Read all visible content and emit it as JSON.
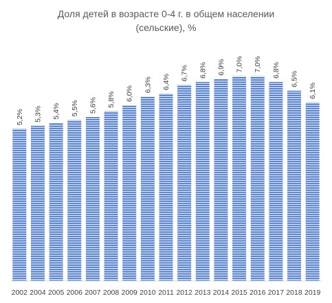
{
  "chart_data": {
    "type": "bar",
    "title": "Доля детей в возрасте 0-4 г. в общем населении (сельские), %",
    "title_lines": [
      "Доля детей в возрасте 0-4 г. в общем населении",
      "(сельские), %"
    ],
    "categories": [
      "2002",
      "2004",
      "2005",
      "2006",
      "2007",
      "2008",
      "2009",
      "2010",
      "2011",
      "2012",
      "2013",
      "2014",
      "2015",
      "2016",
      "2017",
      "2018",
      "2019"
    ],
    "values": [
      5.2,
      5.3,
      5.4,
      5.5,
      5.6,
      5.8,
      6.0,
      6.3,
      6.4,
      6.7,
      6.8,
      6.9,
      7.0,
      7.0,
      6.8,
      6.5,
      6.1
    ],
    "data_labels": [
      "5,2%",
      "5,3%",
      "5,4%",
      "5,5%",
      "5,6%",
      "5,8%",
      "6,0%",
      "6,3%",
      "6,4%",
      "6,7%",
      "6,8%",
      "6,9%",
      "7,0%",
      "7,0%",
      "6,8%",
      "6,5%",
      "6,1%"
    ],
    "xlabel": "",
    "ylabel": "",
    "ylim": [
      0,
      7.5
    ],
    "grid": false,
    "legend": "none",
    "bar_pattern": "horizontal-stripes",
    "colors": {
      "bar_stripe": "#4472c4",
      "bar_bg": "#ffffff",
      "axis": "#d9d9d9",
      "text": "#404040",
      "title": "#595959"
    }
  }
}
